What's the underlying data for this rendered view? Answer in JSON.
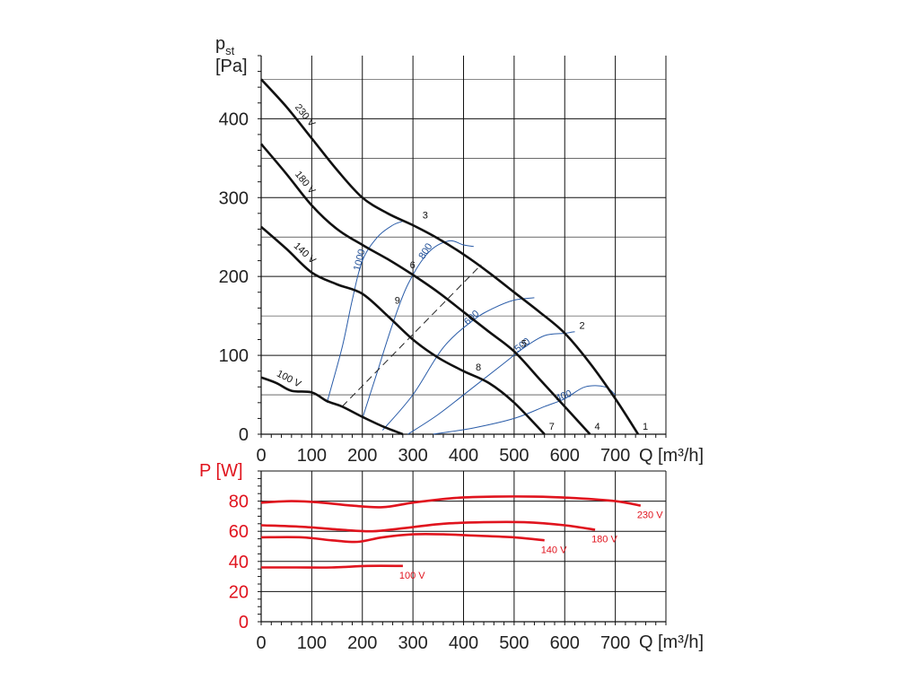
{
  "colors": {
    "grid": "#111111",
    "curve": "#111111",
    "rpm": "#2a5ca8",
    "power": "#e0141e",
    "text": "#222222"
  },
  "chart_data": [
    {
      "type": "line",
      "title": "",
      "ylabel_main": "p",
      "ylabel_sub": "st",
      "ylabel_unit": "[Pa]",
      "xlabel_q": "Q",
      "xlabel_unit": "[m³/h]",
      "xlim": [
        0,
        800
      ],
      "ylim": [
        0,
        480
      ],
      "x_ticks": [
        "0",
        "100",
        "200",
        "300",
        "400",
        "500",
        "600",
        "700"
      ],
      "x_tick_values": [
        0,
        100,
        200,
        300,
        400,
        500,
        600,
        700
      ],
      "y_ticks": [
        "0",
        "100",
        "200",
        "300",
        "400"
      ],
      "y_tick_values": [
        0,
        100,
        200,
        300,
        400
      ],
      "series": [
        {
          "name": "230 V",
          "label": "230 V",
          "x": [
            0,
            50,
            100,
            150,
            200,
            250,
            300,
            350,
            400,
            450,
            500,
            550,
            600,
            650,
            700,
            745
          ],
          "y": [
            450,
            415,
            375,
            335,
            300,
            280,
            265,
            248,
            228,
            205,
            180,
            155,
            128,
            90,
            45,
            0
          ]
        },
        {
          "name": "180 V",
          "label": "180 V",
          "x": [
            0,
            50,
            100,
            150,
            200,
            250,
            300,
            350,
            400,
            450,
            500,
            550,
            600,
            650
          ],
          "y": [
            368,
            330,
            290,
            260,
            240,
            222,
            202,
            180,
            155,
            130,
            105,
            70,
            35,
            0
          ]
        },
        {
          "name": "140 V",
          "label": "140 V",
          "x": [
            0,
            50,
            100,
            150,
            200,
            250,
            300,
            350,
            400,
            450,
            500,
            560
          ],
          "y": [
            263,
            235,
            205,
            190,
            178,
            150,
            120,
            97,
            80,
            65,
            40,
            0
          ]
        },
        {
          "name": "100 V",
          "label": "100 V",
          "x": [
            0,
            30,
            60,
            100,
            130,
            160,
            200,
            240,
            280
          ],
          "y": [
            72,
            65,
            55,
            53,
            42,
            35,
            22,
            10,
            0
          ]
        }
      ],
      "rpm_lines": [
        {
          "label": "1000",
          "x": [
            130,
            160,
            180,
            200,
            230,
            260,
            280
          ],
          "y": [
            40,
            110,
            170,
            220,
            250,
            265,
            270
          ]
        },
        {
          "label": "800",
          "x": [
            200,
            230,
            260,
            290,
            330,
            370,
            400,
            420
          ],
          "y": [
            20,
            80,
            140,
            190,
            230,
            245,
            240,
            238
          ]
        },
        {
          "label": "600",
          "x": [
            240,
            300,
            360,
            420,
            460,
            500,
            540
          ],
          "y": [
            5,
            50,
            110,
            145,
            160,
            170,
            173
          ]
        },
        {
          "label": "500",
          "x": [
            290,
            350,
            420,
            480,
            520,
            560,
            600,
            620
          ],
          "y": [
            0,
            25,
            60,
            90,
            110,
            125,
            128,
            130
          ]
        },
        {
          "label": "400",
          "x": [
            340,
            420,
            500,
            560,
            600,
            640,
            680,
            700
          ],
          "y": [
            0,
            8,
            20,
            35,
            45,
            60,
            60,
            50
          ]
        }
      ],
      "system_line": {
        "x": [
          160,
          435
        ],
        "y": [
          35,
          215
        ]
      },
      "operating_points": [
        {
          "label": "1",
          "x": 745,
          "y": 0
        },
        {
          "label": "2",
          "x": 620,
          "y": 128
        },
        {
          "label": "3",
          "x": 310,
          "y": 268
        },
        {
          "label": "4",
          "x": 650,
          "y": 0
        },
        {
          "label": "5",
          "x": 505,
          "y": 105
        },
        {
          "label": "6",
          "x": 285,
          "y": 205
        },
        {
          "label": "7",
          "x": 560,
          "y": 0
        },
        {
          "label": "8",
          "x": 415,
          "y": 75
        },
        {
          "label": "9",
          "x": 255,
          "y": 160
        }
      ]
    },
    {
      "type": "line",
      "title": "",
      "ylabel": "P [W]",
      "xlabel_q": "Q",
      "xlabel_unit": "[m³/h]",
      "xlim": [
        0,
        800
      ],
      "ylim": [
        0,
        100
      ],
      "x_ticks": [
        "0",
        "100",
        "200",
        "300",
        "400",
        "500",
        "600",
        "700"
      ],
      "x_tick_values": [
        0,
        100,
        200,
        300,
        400,
        500,
        600,
        700
      ],
      "y_ticks": [
        "0",
        "20",
        "40",
        "60",
        "80"
      ],
      "y_tick_values": [
        0,
        20,
        40,
        60,
        80
      ],
      "series": [
        {
          "name": "230 V",
          "label": "230 V",
          "x": [
            0,
            60,
            120,
            180,
            240,
            300,
            380,
            460,
            540,
            620,
            700,
            750
          ],
          "y": [
            79,
            80,
            79,
            77,
            76,
            79,
            82,
            83,
            83,
            82,
            80,
            77
          ]
        },
        {
          "name": "180 V",
          "label": "180 V",
          "x": [
            0,
            80,
            160,
            220,
            280,
            360,
            440,
            520,
            600,
            660
          ],
          "y": [
            64,
            63,
            61,
            60,
            62,
            65,
            66,
            66,
            64,
            61
          ]
        },
        {
          "name": "140 V",
          "label": "140 V",
          "x": [
            0,
            80,
            140,
            190,
            240,
            300,
            360,
            430,
            500,
            560
          ],
          "y": [
            56,
            56,
            54,
            53,
            56,
            58,
            58,
            57,
            56,
            54
          ]
        },
        {
          "name": "100 V",
          "label": "100 V",
          "x": [
            0,
            70,
            140,
            210,
            280
          ],
          "y": [
            36,
            36,
            36,
            37,
            37
          ]
        }
      ]
    }
  ]
}
